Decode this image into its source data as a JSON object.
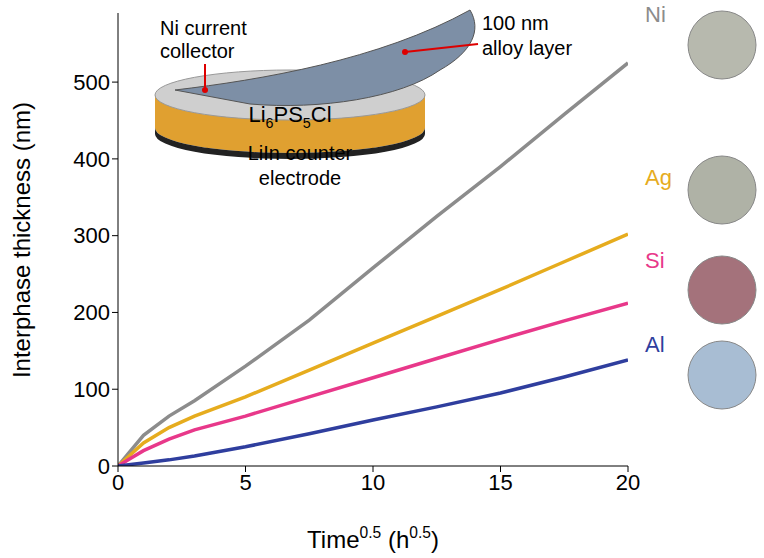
{
  "chart_data": {
    "type": "line",
    "y_label": "Interphase thickness (nm)",
    "x_label": [
      {
        "text": "Time"
      },
      {
        "text": "0.5",
        "sup": true
      },
      {
        "text": " (h"
      },
      {
        "text": "0.5",
        "sup": true
      },
      {
        "text": ")"
      }
    ],
    "x": [
      0,
      0.5,
      1,
      2,
      3,
      5,
      7.5,
      10,
      12.5,
      15,
      17.5,
      20
    ],
    "series": [
      {
        "name": "Ni",
        "color": "#8c8c8c",
        "values": [
          0,
          20,
          40,
          65,
          85,
          130,
          190,
          258,
          325,
          390,
          458,
          525
        ]
      },
      {
        "name": "Ag",
        "color": "#e6ac1e",
        "values": [
          0,
          15,
          30,
          50,
          65,
          90,
          125,
          160,
          195,
          230,
          266,
          302
        ]
      },
      {
        "name": "Si",
        "color": "#e8388a",
        "values": [
          0,
          10,
          20,
          35,
          47,
          65,
          90,
          115,
          140,
          165,
          189,
          212
        ]
      },
      {
        "name": "Al",
        "color": "#2f3e9e",
        "values": [
          0,
          2,
          4,
          8,
          13,
          25,
          42,
          60,
          77,
          95,
          116,
          138
        ]
      }
    ],
    "xlim": [
      0,
      20
    ],
    "xticks": [
      0,
      5,
      10,
      15,
      20
    ],
    "ylim": [
      0,
      590
    ],
    "yticks": [
      0,
      100,
      200,
      300,
      400,
      500
    ],
    "legend": "right",
    "annotations": {
      "collector": [
        "Ni current",
        "collector"
      ],
      "alloy": [
        "100 nm",
        "alloy layer"
      ],
      "electrolyte": [
        {
          "text": "Li"
        },
        {
          "text": "6",
          "sub": true
        },
        {
          "text": "PS"
        },
        {
          "text": "5",
          "sub": true
        },
        {
          "text": "Cl"
        }
      ],
      "counter": [
        "LiIn counter",
        "electrode"
      ]
    }
  }
}
